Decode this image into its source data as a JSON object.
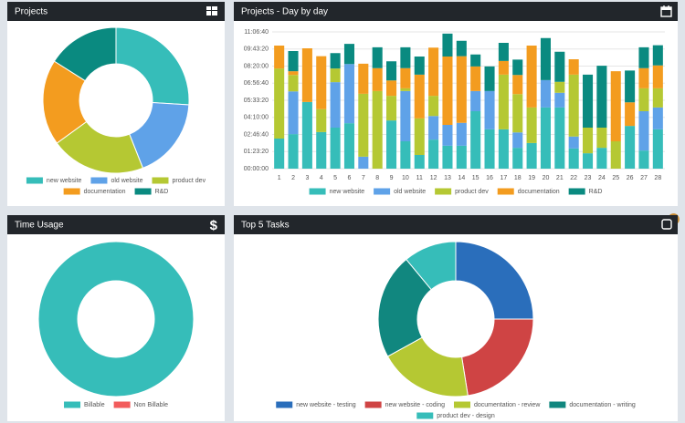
{
  "chart_data": [
    {
      "type": "donut",
      "title": "Projects",
      "categories": [
        "new website",
        "old website",
        "product dev",
        "documentation",
        "R&D"
      ],
      "values": [
        26,
        18,
        21,
        19,
        16
      ],
      "colors": [
        "#36bdb9",
        "#5fa2e8",
        "#b5c833",
        "#f39c1f",
        "#0a8a80"
      ]
    },
    {
      "type": "bar",
      "stacked": true,
      "title": "Projects - Day by day",
      "grid": true,
      "categories": [
        1,
        2,
        3,
        4,
        5,
        6,
        7,
        8,
        9,
        10,
        11,
        12,
        13,
        14,
        15,
        16,
        17,
        18,
        19,
        20,
        21,
        22,
        23,
        24,
        25,
        26,
        27,
        28
      ],
      "ylim": [
        0,
        40000
      ],
      "yticks": [
        {
          "value": 0,
          "label": "00:00:00"
        },
        {
          "value": 5000,
          "label": "01:23:20"
        },
        {
          "value": 10000,
          "label": "02:46:40"
        },
        {
          "value": 15000,
          "label": "04:10:00"
        },
        {
          "value": 20000,
          "label": "05:33:20"
        },
        {
          "value": 25000,
          "label": "06:56:40"
        },
        {
          "value": 30000,
          "label": "08:20:00"
        },
        {
          "value": 35000,
          "label": "09:43:20"
        },
        {
          "value": 40000,
          "label": "11:06:40"
        }
      ],
      "series": [
        {
          "name": "new website",
          "color": "#36bdb9",
          "values": [
            8800,
            10100,
            19500,
            10700,
            12000,
            13300,
            0,
            0,
            14100,
            8000,
            4000,
            8500,
            6700,
            6700,
            16800,
            11500,
            11500,
            6100,
            7500,
            17900,
            17900,
            5900,
            4500,
            6100,
            0,
            12500,
            5300,
            11500
          ]
        },
        {
          "name": "old website",
          "color": "#5fa2e8",
          "values": [
            0,
            12500,
            0,
            0,
            13300,
            17300,
            3500,
            0,
            0,
            14700,
            0,
            6900,
            6100,
            6700,
            5900,
            11200,
            0,
            4500,
            0,
            8000,
            4300,
            3500,
            0,
            0,
            0,
            0,
            11500,
            6400
          ]
        },
        {
          "name": "product dev",
          "color": "#b5c833",
          "values": [
            20500,
            4800,
            0,
            6700,
            4000,
            0,
            18400,
            22700,
            7200,
            800,
            10700,
            5900,
            0,
            0,
            0,
            0,
            16000,
            11200,
            10400,
            0,
            3200,
            18100,
            7500,
            5900,
            8000,
            0,
            6700,
            5600
          ]
        },
        {
          "name": "documentation",
          "color": "#f39c1f",
          "values": [
            6700,
            1100,
            15700,
            15500,
            0,
            0,
            8800,
            6700,
            4500,
            5900,
            12800,
            14100,
            20000,
            19500,
            7200,
            0,
            4000,
            5600,
            18100,
            0,
            0,
            4500,
            0,
            0,
            20500,
            6900,
            5900,
            6700
          ]
        },
        {
          "name": "R&D",
          "color": "#0a8a80",
          "values": [
            0,
            5900,
            0,
            0,
            4500,
            5900,
            0,
            6100,
            5600,
            6100,
            5300,
            0,
            6700,
            4500,
            3500,
            7200,
            5300,
            4500,
            0,
            12300,
            8800,
            0,
            15500,
            18100,
            0,
            9300,
            6100,
            5900
          ]
        }
      ]
    },
    {
      "type": "donut",
      "title": "Time Usage",
      "icon": "$",
      "categories": [
        "Billable",
        "Non Billable"
      ],
      "values": [
        100,
        0
      ],
      "colors": [
        "#36bdb9",
        "#f25c5c"
      ]
    },
    {
      "type": "donut",
      "title": "Top 5 Tasks",
      "categories": [
        "new website - testing",
        "new website - coding",
        "documentation - review",
        "documentation - writing",
        "product dev - design"
      ],
      "values": [
        25,
        22.5,
        19.5,
        22,
        11
      ],
      "colors": [
        "#2a6ebb",
        "#cf4444",
        "#b5c833",
        "#11877f",
        "#36bdb9"
      ]
    }
  ]
}
